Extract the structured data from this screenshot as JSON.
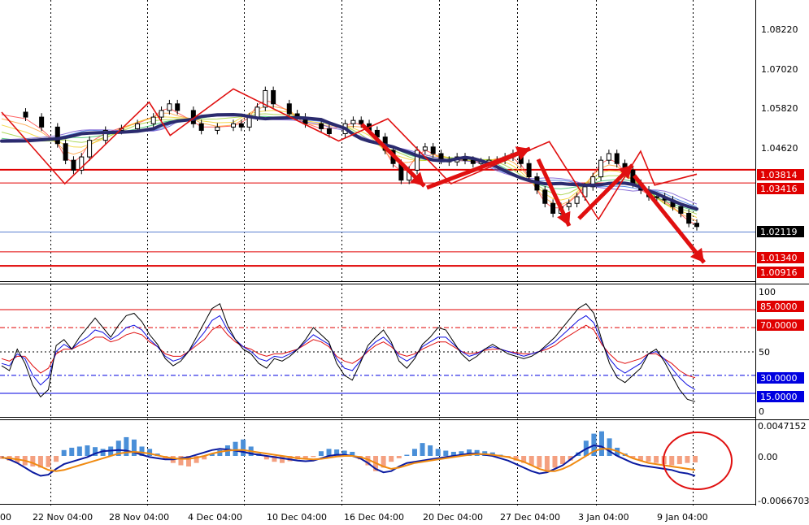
{
  "chart_data": [
    {
      "type": "candlestick",
      "title": "",
      "price_axis_labels": [
        "1.08220",
        "1.07020",
        "1.05820",
        "1.04620"
      ],
      "current_price": "1.02119",
      "horizontal_levels": [
        {
          "label": "1.03814",
          "value": 1.03814,
          "color": "#e00000"
        },
        {
          "label": "1.03416",
          "value": 1.03416,
          "color": "#e00000"
        },
        {
          "label": "1.01340",
          "value": 1.0134,
          "color": "#e00000"
        },
        {
          "label": "1.00916",
          "value": 1.00916,
          "color": "#e00000"
        }
      ],
      "moving_average_color": "#2b2b6e",
      "zigzag_color": "#e01010",
      "price_path": [
        [
          0,
          1.0555
        ],
        [
          3,
          1.054
        ],
        [
          5,
          1.051
        ],
        [
          7,
          1.046
        ],
        [
          8,
          1.041
        ],
        [
          9,
          1.038
        ],
        [
          10,
          1.042
        ],
        [
          11,
          1.047
        ],
        [
          13,
          1.05
        ],
        [
          15,
          1.0505
        ],
        [
          17,
          1.052
        ],
        [
          19,
          1.054
        ],
        [
          20,
          1.056
        ],
        [
          21,
          1.058
        ],
        [
          22,
          1.056
        ],
        [
          24,
          1.052
        ],
        [
          25,
          1.05
        ],
        [
          27,
          1.051
        ],
        [
          29,
          1.052
        ],
        [
          30,
          1.051
        ],
        [
          31,
          1.054
        ],
        [
          32,
          1.057
        ],
        [
          33,
          1.062
        ],
        [
          34,
          1.058
        ],
        [
          36,
          1.055
        ],
        [
          37,
          1.054
        ],
        [
          38,
          1.052
        ],
        [
          40,
          1.0505
        ],
        [
          41,
          1.049
        ],
        [
          43,
          1.052
        ],
        [
          44,
          1.053
        ],
        [
          45,
          1.052
        ],
        [
          46,
          1.05
        ],
        [
          47,
          1.048
        ],
        [
          48,
          1.044
        ],
        [
          49,
          1.04
        ],
        [
          50,
          1.035
        ],
        [
          51,
          1.038
        ],
        [
          52,
          1.044
        ],
        [
          53,
          1.045
        ],
        [
          54,
          1.043
        ],
        [
          55,
          1.041
        ],
        [
          56,
          1.0405
        ],
        [
          57,
          1.042
        ],
        [
          58,
          1.041
        ],
        [
          59,
          1.04
        ],
        [
          60,
          1.0405
        ],
        [
          61,
          1.041
        ],
        [
          62,
          1.041
        ],
        [
          63,
          1.042
        ],
        [
          64,
          1.043
        ],
        [
          65,
          1.04
        ],
        [
          66,
          1.036
        ],
        [
          67,
          1.032
        ],
        [
          68,
          1.028
        ],
        [
          69,
          1.025
        ],
        [
          70,
          1.027
        ],
        [
          71,
          1.028
        ],
        [
          72,
          1.03
        ],
        [
          73,
          1.033
        ],
        [
          74,
          1.036
        ],
        [
          75,
          1.041
        ],
        [
          76,
          1.043
        ],
        [
          77,
          1.04
        ],
        [
          78,
          1.038
        ],
        [
          79,
          1.034
        ],
        [
          80,
          1.032
        ],
        [
          81,
          1.03
        ],
        [
          82,
          1.03
        ],
        [
          83,
          1.029
        ],
        [
          84,
          1.027
        ],
        [
          85,
          1.025
        ],
        [
          86,
          1.022
        ],
        [
          87,
          1.021
        ]
      ],
      "zigzag_points": [
        [
          0,
          1.0555
        ],
        [
          9,
          1.0339
        ],
        [
          21,
          1.0585
        ],
        [
          24,
          1.0485
        ],
        [
          33,
          1.0625
        ],
        [
          48,
          1.0468
        ],
        [
          55,
          1.0535
        ],
        [
          64,
          1.0339
        ],
        [
          78,
          1.0466
        ],
        [
          85,
          1.0232
        ],
        [
          91,
          1.0437
        ],
        [
          93,
          1.0335
        ],
        [
          99,
          1.0368
        ]
      ]
    },
    {
      "type": "line",
      "title": "",
      "ylim": [
        0,
        100
      ],
      "tick_labels": [
        "100",
        "50",
        "0"
      ],
      "level_lines": [
        {
          "label": "85.0000",
          "value": 85,
          "color": "#e00000",
          "style": "solid"
        },
        {
          "label": "70.0000",
          "value": 70,
          "color": "#e00000",
          "style": "dashdot"
        },
        {
          "label": "30.0000",
          "value": 30,
          "color": "#0000e0",
          "style": "dashdot"
        },
        {
          "label": "15.0000",
          "value": 15,
          "color": "#0000e0",
          "style": "solid"
        }
      ],
      "series": [
        {
          "color": "#000000",
          "values": [
            38,
            34,
            52,
            40,
            22,
            12,
            18,
            55,
            60,
            52,
            62,
            70,
            78,
            70,
            62,
            72,
            80,
            82,
            75,
            64,
            56,
            44,
            38,
            42,
            50,
            62,
            74,
            86,
            90,
            72,
            60,
            52,
            48,
            40,
            36,
            44,
            42,
            46,
            52,
            60,
            70,
            64,
            58,
            40,
            30,
            26,
            40,
            55,
            62,
            68,
            58,
            42,
            36,
            44,
            56,
            62,
            70,
            68,
            58,
            48,
            42,
            46,
            52,
            56,
            52,
            48,
            46,
            44,
            46,
            50,
            56,
            62,
            70,
            78,
            86,
            90,
            82,
            60,
            40,
            28,
            24,
            30,
            36,
            48,
            52,
            42,
            30,
            18,
            10,
            8
          ]
        },
        {
          "color": "#1010e0",
          "values": [
            40,
            38,
            48,
            44,
            30,
            22,
            28,
            50,
            56,
            52,
            58,
            62,
            68,
            66,
            60,
            64,
            70,
            72,
            68,
            60,
            54,
            46,
            42,
            44,
            50,
            58,
            66,
            76,
            80,
            68,
            60,
            54,
            50,
            44,
            42,
            46,
            45,
            48,
            52,
            58,
            64,
            60,
            56,
            44,
            36,
            34,
            42,
            52,
            58,
            62,
            56,
            46,
            42,
            46,
            54,
            58,
            62,
            62,
            56,
            50,
            46,
            48,
            52,
            54,
            52,
            50,
            48,
            46,
            48,
            50,
            54,
            58,
            64,
            70,
            76,
            80,
            74,
            58,
            44,
            36,
            32,
            36,
            40,
            48,
            50,
            44,
            36,
            28,
            22,
            18
          ]
        },
        {
          "color": "#e01010",
          "values": [
            44,
            42,
            46,
            46,
            38,
            32,
            36,
            48,
            52,
            52,
            55,
            58,
            62,
            62,
            58,
            60,
            64,
            66,
            64,
            58,
            54,
            48,
            46,
            46,
            50,
            55,
            60,
            68,
            72,
            64,
            58,
            54,
            52,
            48,
            46,
            48,
            48,
            50,
            52,
            56,
            60,
            58,
            54,
            46,
            42,
            40,
            44,
            50,
            55,
            58,
            54,
            48,
            46,
            48,
            52,
            55,
            58,
            58,
            54,
            50,
            48,
            49,
            51,
            52,
            52,
            50,
            49,
            48,
            48,
            50,
            52,
            55,
            60,
            64,
            68,
            72,
            68,
            56,
            48,
            42,
            40,
            42,
            44,
            48,
            48,
            44,
            40,
            34,
            30,
            28
          ]
        }
      ]
    },
    {
      "type": "bar",
      "title": "",
      "tick_labels": [
        "0.0047152",
        "0.00",
        "-0.0066703"
      ],
      "ylim": [
        -0.0066703,
        0.0047152
      ],
      "positive_color": "#4a8fd8",
      "negative_color": "#f4a080",
      "values": [
        -0.0005,
        -0.0008,
        -0.0012,
        -0.0016,
        -0.0018,
        -0.002,
        -0.0019,
        -0.001,
        0.001,
        0.0014,
        0.0016,
        0.0018,
        0.0015,
        0.0012,
        0.0016,
        0.0026,
        0.0032,
        0.0028,
        0.0016,
        0.0012,
        0.0004,
        -0.0006,
        -0.0012,
        -0.0016,
        -0.0018,
        -0.0012,
        -0.0006,
        0.0004,
        0.001,
        0.0018,
        0.0024,
        0.0028,
        0.0016,
        0.0004,
        -0.0006,
        -0.001,
        -0.0012,
        -0.0009,
        -0.0006,
        -0.0004,
        -0.0002,
        0.0008,
        0.0012,
        0.0011,
        0.0009,
        0.0007,
        -0.0006,
        -0.0016,
        -0.0026,
        -0.002,
        -0.001,
        -0.0004,
        0.0002,
        0.0012,
        0.0022,
        0.0018,
        0.0012,
        0.0009,
        0.0007,
        0.0008,
        0.0011,
        0.001,
        0.0008,
        0.0006,
        0.0002,
        -0.0003,
        -0.0008,
        -0.0012,
        -0.0016,
        -0.002,
        -0.0026,
        -0.002,
        -0.0014,
        -0.0008,
        0.0006,
        0.0026,
        0.0038,
        0.0042,
        0.003,
        0.0014,
        0.0004,
        -0.0004,
        -0.0008,
        -0.001,
        -0.0012,
        -0.0014,
        -0.0016,
        -0.0014,
        -0.0012,
        -0.0011
      ],
      "series": [
        {
          "color": "#0a1aa0",
          "values": [
            -0.0002,
            -0.0006,
            -0.0012,
            -0.002,
            -0.0028,
            -0.0034,
            -0.0032,
            -0.0022,
            -0.0014,
            -0.001,
            -0.0006,
            -0.0002,
            0.0004,
            0.0008,
            0.0009,
            0.001,
            0.0009,
            0.0006,
            0.0002,
            -0.0002,
            -0.0004,
            -0.0006,
            -0.0006,
            -0.0004,
            -0.0002,
            0.0002,
            0.0006,
            0.001,
            0.0012,
            0.0011,
            0.0009,
            0.0007,
            0.0004,
            0.0002,
            0.0,
            -0.0002,
            -0.0004,
            -0.0006,
            -0.0008,
            -0.0009,
            -0.0008,
            -0.0004,
            0.0,
            0.0002,
            0.0002,
            0.0,
            -0.0004,
            -0.0012,
            -0.0022,
            -0.0028,
            -0.0026,
            -0.0018,
            -0.0012,
            -0.001,
            -0.0008,
            -0.0006,
            -0.0004,
            -0.0002,
            0.0,
            0.0002,
            0.0004,
            0.0004,
            0.0002,
            0.0,
            -0.0004,
            -0.0008,
            -0.0014,
            -0.002,
            -0.0026,
            -0.003,
            -0.0028,
            -0.0022,
            -0.0016,
            -0.0006,
            0.0004,
            0.0012,
            0.0018,
            0.0016,
            0.0008,
            0.0,
            -0.0006,
            -0.0012,
            -0.0016,
            -0.0018,
            -0.002,
            -0.0022,
            -0.0024,
            -0.0028,
            -0.003,
            -0.0034
          ]
        },
        {
          "color": "#f08a10",
          "values": [
            -0.0003,
            -0.0004,
            -0.0006,
            -0.0008,
            -0.0012,
            -0.0018,
            -0.0024,
            -0.0026,
            -0.0024,
            -0.002,
            -0.0016,
            -0.0012,
            -0.0008,
            -0.0004,
            0.0,
            0.0004,
            0.0006,
            0.0007,
            0.0006,
            0.0004,
            0.0001,
            -0.0002,
            -0.0004,
            -0.0005,
            -0.0005,
            -0.0003,
            0.0,
            0.0004,
            0.0007,
            0.0009,
            0.001,
            0.001,
            0.0008,
            0.0006,
            0.0004,
            0.0002,
            0.0,
            -0.0002,
            -0.0004,
            -0.0005,
            -0.0006,
            -0.0005,
            -0.0003,
            -0.0001,
            0.0,
            0.0,
            -0.0002,
            -0.0006,
            -0.0012,
            -0.0018,
            -0.0022,
            -0.002,
            -0.0016,
            -0.0012,
            -0.001,
            -0.0008,
            -0.0006,
            -0.0004,
            -0.0002,
            0.0,
            0.0002,
            0.0003,
            0.0003,
            0.0002,
            0.0,
            -0.0002,
            -0.0006,
            -0.001,
            -0.0016,
            -0.0022,
            -0.0026,
            -0.0026,
            -0.0022,
            -0.0016,
            -0.0008,
            0.0,
            0.0008,
            0.0012,
            0.0012,
            0.0008,
            0.0002,
            -0.0004,
            -0.0008,
            -0.0012,
            -0.0014,
            -0.0016,
            -0.0018,
            -0.002,
            -0.0022,
            -0.0024
          ]
        }
      ]
    }
  ],
  "x_axis_labels": [
    "00",
    "22 Nov 04:00",
    "28 Nov 04:00",
    "4 Dec 04:00",
    "10 Dec 04:00",
    "16 Dec 04:00",
    "20 Dec 04:00",
    "27 Dec 04:00",
    "3 Jan 04:00",
    "9 Jan 04:00"
  ]
}
